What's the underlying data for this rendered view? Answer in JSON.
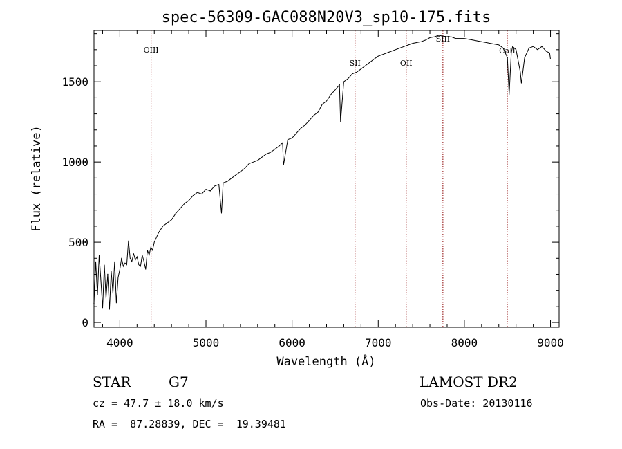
{
  "chart_data": {
    "type": "line",
    "title": "spec-56309-GAC088N20V3_sp10-175.fits",
    "xlabel": "Wavelength (Å)",
    "ylabel": "Flux (relative)",
    "xlim": [
      3700,
      9100
    ],
    "ylim": [
      -30,
      1820
    ],
    "x_ticks": [
      4000,
      5000,
      6000,
      7000,
      8000,
      9000
    ],
    "y_ticks": [
      0,
      500,
      1000,
      1500
    ],
    "grid": false,
    "line_color": "#000000",
    "marker_color": "#8b0000",
    "series": [
      {
        "x": [
          3700,
          3720,
          3740,
          3760,
          3780,
          3800,
          3820,
          3840,
          3860,
          3880,
          3900,
          3920,
          3940,
          3960,
          3980,
          4000,
          4020,
          4040,
          4060,
          4080,
          4100,
          4120,
          4140,
          4160,
          4180,
          4200,
          4220,
          4240,
          4260,
          4280,
          4300,
          4320,
          4340,
          4360,
          4380,
          4400,
          4450,
          4500,
          4550,
          4600,
          4650,
          4700,
          4750,
          4800,
          4850,
          4900,
          4950,
          5000,
          5050,
          5100,
          5150,
          5180,
          5200,
          5250,
          5300,
          5350,
          5400,
          5450,
          5500,
          5550,
          5600,
          5650,
          5700,
          5750,
          5800,
          5850,
          5890,
          5900,
          5950,
          6000,
          6050,
          6100,
          6150,
          6200,
          6250,
          6300,
          6350,
          6400,
          6450,
          6500,
          6550,
          6563,
          6600,
          6650,
          6700,
          6750,
          6800,
          6850,
          6900,
          6950,
          7000,
          7050,
          7100,
          7150,
          7200,
          7250,
          7300,
          7350,
          7400,
          7450,
          7500,
          7550,
          7600,
          7650,
          7700,
          7750,
          7800,
          7850,
          7900,
          7950,
          8000,
          8050,
          8100,
          8150,
          8200,
          8250,
          8300,
          8350,
          8400,
          8450,
          8500,
          8520,
          8545,
          8560,
          8600,
          8650,
          8662,
          8700,
          8750,
          8800,
          8850,
          8900,
          8950,
          8990,
          9000
        ],
        "y": [
          120,
          380,
          170,
          420,
          260,
          90,
          360,
          150,
          300,
          80,
          320,
          180,
          380,
          120,
          280,
          330,
          400,
          350,
          370,
          360,
          510,
          400,
          380,
          430,
          390,
          410,
          360,
          350,
          420,
          380,
          330,
          450,
          420,
          470,
          450,
          500,
          560,
          600,
          620,
          640,
          680,
          710,
          740,
          760,
          790,
          810,
          800,
          830,
          820,
          850,
          860,
          680,
          870,
          880,
          900,
          920,
          940,
          960,
          990,
          1000,
          1010,
          1030,
          1050,
          1060,
          1080,
          1100,
          1120,
          980,
          1140,
          1150,
          1180,
          1210,
          1230,
          1260,
          1290,
          1310,
          1360,
          1380,
          1420,
          1450,
          1480,
          1250,
          1500,
          1520,
          1550,
          1560,
          1580,
          1600,
          1620,
          1640,
          1660,
          1670,
          1680,
          1690,
          1700,
          1710,
          1720,
          1730,
          1740,
          1745,
          1750,
          1760,
          1775,
          1780,
          1790,
          1785,
          1780,
          1780,
          1770,
          1770,
          1770,
          1765,
          1760,
          1755,
          1750,
          1745,
          1740,
          1735,
          1730,
          1710,
          1650,
          1420,
          1680,
          1720,
          1700,
          1560,
          1490,
          1650,
          1710,
          1720,
          1700,
          1720,
          1690,
          1680,
          1640
        ]
      }
    ],
    "annotations": [
      {
        "label": "OIII",
        "x": 4363
      },
      {
        "label": "SII",
        "x": 6731
      },
      {
        "label": "OII",
        "x": 7325
      },
      {
        "label": "SIII",
        "x": 7751
      },
      {
        "label": "CaII",
        "x": 8498
      }
    ]
  },
  "footer": {
    "object_class": "STAR",
    "subclass": "G7",
    "survey": "LAMOST DR2",
    "redshift_text": "cz = 47.7 ± 18.0 km/s",
    "obs_date": "Obs-Date: 20130116",
    "coords": "RA =  87.28839, DEC =  19.39481"
  }
}
